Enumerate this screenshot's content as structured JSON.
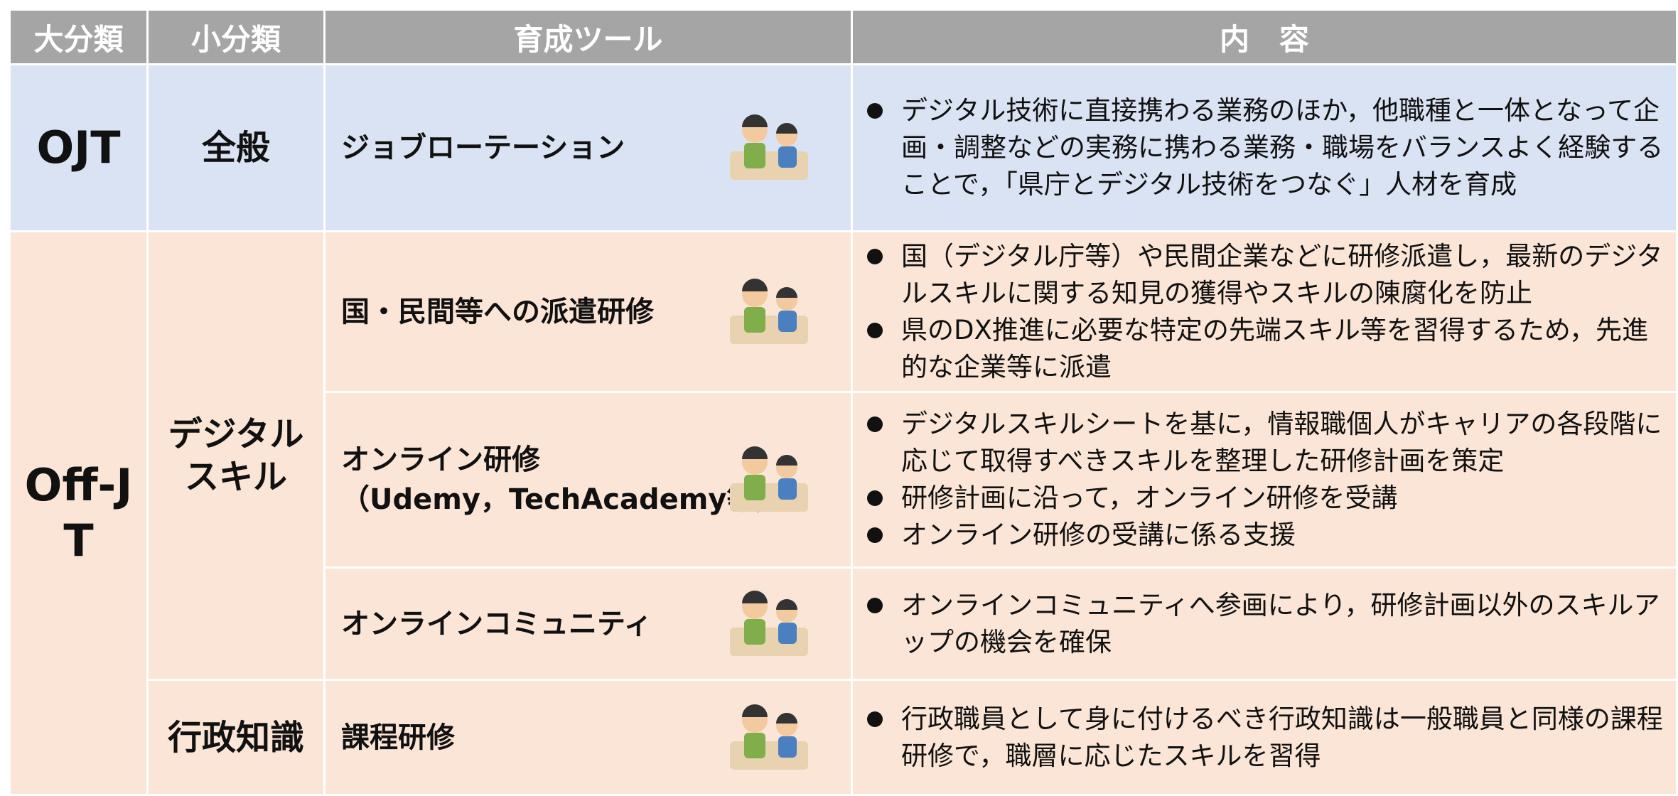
{
  "header": [
    "大分類",
    "小分類",
    "育成ツール",
    "内　容"
  ],
  "groups": [
    {
      "major": "OJT",
      "subgroups": [
        {
          "minor": [
            "全般"
          ],
          "items": [
            {
              "tool": [
                "ジョブローテーション"
              ],
              "bullets": [
                "デジタル技術に直接携わる業務のほか，他職種と一体となって企画・調整などの実務に携わる業務・職場をバランスよく経験することで，「県庁とデジタル技術をつなぐ」人材を育成"
              ]
            }
          ]
        }
      ]
    },
    {
      "major": "Off-JT",
      "subgroups": [
        {
          "minor": [
            "デジタル",
            "スキル"
          ],
          "items": [
            {
              "tool": [
                "国・民間等への派遣研修"
              ],
              "bullets": [
                "国（デジタル庁等）や民間企業などに研修派遣し，最新のデジタルスキルに関する知見の獲得やスキルの陳腐化を防止",
                "県のDX推進に必要な特定の先端スキル等を習得するため，先進的な企業等に派遣"
              ]
            },
            {
              "tool": [
                "オンライン研修",
                "（Udemy，TechAcademy等）"
              ],
              "bullets": [
                "デジタルスキルシートを基に，情報職個人がキャリアの各段階に応じて取得すべきスキルを整理した研修計画を策定",
                "研修計画に沿って，オンライン研修を受講",
                "オンライン研修の受講に係る支援"
              ]
            },
            {
              "tool": [
                "オンラインコミュニティ"
              ],
              "bullets": [
                "オンラインコミュニティへ参画により，研修計画以外のスキルアップの機会を確保"
              ]
            }
          ]
        },
        {
          "minor": [
            "行政知識"
          ],
          "items": [
            {
              "tool": [
                "課程研修"
              ],
              "bullets": [
                "行政職員として身に付けるべき行政知識は一般職員と同様の課程研修で，職層に応じたスキルを習得"
              ]
            }
          ]
        }
      ]
    }
  ]
}
